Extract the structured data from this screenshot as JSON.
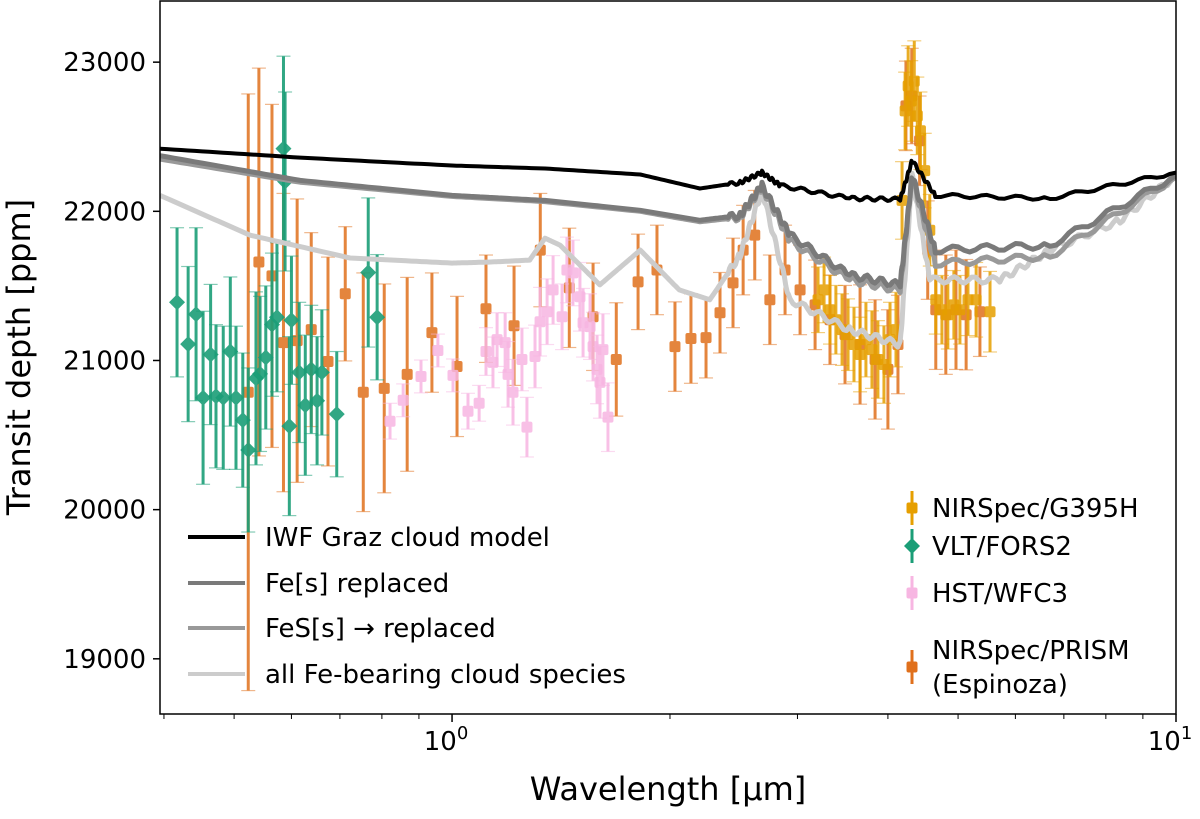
{
  "chart_data": {
    "type": "scatter",
    "xlabel": "Wavelength [μm]",
    "ylabel": "Transit depth [ppm]",
    "xscale": "log",
    "xlim": [
      0.395,
      10
    ],
    "ylim": [
      18630,
      23410
    ],
    "xticks": [
      {
        "value": 1,
        "base": "10",
        "exp": "0"
      },
      {
        "value": 10,
        "base": "10",
        "exp": "1"
      }
    ],
    "yticks": [
      19000,
      20000,
      21000,
      22000,
      23000
    ],
    "grid": false,
    "legend_left": "bottom-left",
    "legend_right": "bottom-right",
    "models": [
      {
        "name": "IWF Graz cloud model",
        "color": "#000000",
        "points": [
          [
            0.395,
            22420
          ],
          [
            0.617,
            22360
          ],
          [
            1.0,
            22307
          ],
          [
            1.344,
            22287
          ],
          [
            1.82,
            22247
          ],
          [
            2.2,
            22153
          ],
          [
            2.5,
            22193
          ],
          [
            2.68,
            22260
          ],
          [
            2.84,
            22173
          ],
          [
            3.54,
            22087
          ],
          [
            4.16,
            22080
          ],
          [
            4.32,
            22340
          ],
          [
            4.65,
            22107
          ],
          [
            6.7,
            22087
          ],
          [
            10,
            22260
          ]
        ]
      },
      {
        "name": "Fe[s] replaced",
        "color": "#7a7a7a",
        "points": [
          [
            0.395,
            22373
          ],
          [
            0.617,
            22207
          ],
          [
            1.0,
            22107
          ],
          [
            1.344,
            22073
          ],
          [
            1.82,
            22007
          ],
          [
            2.2,
            21940
          ],
          [
            2.5,
            21973
          ],
          [
            2.68,
            22173
          ],
          [
            2.93,
            21840
          ],
          [
            3.54,
            21573
          ],
          [
            4.16,
            21507
          ],
          [
            4.32,
            22240
          ],
          [
            4.65,
            21740
          ],
          [
            6.7,
            21773
          ],
          [
            10,
            22240
          ]
        ]
      },
      {
        "name": "FeS[s] → replaced",
        "color": "#999999",
        "points": [
          [
            0.395,
            22350
          ],
          [
            0.617,
            22195
          ],
          [
            1.0,
            22100
          ],
          [
            1.344,
            22065
          ],
          [
            1.82,
            22000
          ],
          [
            2.2,
            21930
          ],
          [
            2.5,
            21960
          ],
          [
            2.68,
            22160
          ],
          [
            2.93,
            21800
          ],
          [
            3.54,
            21540
          ],
          [
            4.16,
            21470
          ],
          [
            4.32,
            22230
          ],
          [
            4.65,
            21650
          ],
          [
            6.7,
            21700
          ],
          [
            10,
            22230
          ]
        ]
      },
      {
        "name": "all Fe-bearing cloud species",
        "color": "#cccccc",
        "points": [
          [
            0.395,
            22107
          ],
          [
            0.526,
            21840
          ],
          [
            0.723,
            21687
          ],
          [
            1.0,
            21653
          ],
          [
            1.13,
            21660
          ],
          [
            1.28,
            21673
          ],
          [
            1.344,
            21820
          ],
          [
            1.41,
            21773
          ],
          [
            1.6,
            21507
          ],
          [
            1.82,
            21740
          ],
          [
            2.06,
            21473
          ],
          [
            2.27,
            21407
          ],
          [
            2.5,
            21707
          ],
          [
            2.68,
            22140
          ],
          [
            2.93,
            21407
          ],
          [
            3.54,
            21207
          ],
          [
            4.16,
            21107
          ],
          [
            4.32,
            22240
          ],
          [
            4.57,
            21540
          ],
          [
            5.71,
            21540
          ],
          [
            6.7,
            21740
          ],
          [
            8.37,
            21940
          ],
          [
            10,
            22240
          ]
        ]
      }
    ],
    "series": [
      {
        "name": "NIRSpec/G395H",
        "marker": "square",
        "color": "#e69f00",
        "points": [
          [
            3.203,
            21407,
            220
          ],
          [
            3.265,
            21473,
            220
          ],
          [
            3.327,
            21340,
            230
          ],
          [
            3.39,
            21273,
            230
          ],
          [
            3.457,
            21207,
            240
          ],
          [
            3.524,
            21173,
            240
          ],
          [
            3.591,
            21107,
            250
          ],
          [
            3.661,
            21040,
            250
          ],
          [
            3.73,
            21140,
            250
          ],
          [
            3.802,
            21073,
            260
          ],
          [
            3.875,
            21007,
            260
          ],
          [
            3.95,
            20973,
            260
          ],
          [
            4.027,
            21140,
            250
          ],
          [
            4.104,
            21207,
            250
          ],
          [
            4.184,
            22073,
            260
          ],
          [
            4.225,
            22673,
            260
          ],
          [
            4.266,
            22840,
            270
          ],
          [
            4.308,
            22740,
            270
          ],
          [
            4.35,
            22873,
            270
          ],
          [
            4.392,
            22640,
            260
          ],
          [
            4.436,
            22540,
            260
          ],
          [
            4.497,
            22273,
            250
          ],
          [
            4.57,
            21873,
            240
          ],
          [
            4.658,
            21407,
            230
          ],
          [
            4.75,
            21340,
            230
          ],
          [
            4.84,
            21307,
            230
          ],
          [
            4.934,
            21373,
            230
          ],
          [
            5.03,
            21340,
            230
          ],
          [
            5.16,
            21407,
            240
          ],
          [
            5.296,
            21407,
            250
          ],
          [
            5.535,
            21327,
            270
          ]
        ]
      },
      {
        "name": "VLT/FORS2",
        "marker": "diamond",
        "color": "#1b9e77",
        "points": [
          [
            0.417,
            21390,
            500
          ],
          [
            0.432,
            21110,
            520
          ],
          [
            0.443,
            21310,
            580
          ],
          [
            0.453,
            20750,
            580
          ],
          [
            0.464,
            21040,
            470
          ],
          [
            0.472,
            20760,
            480
          ],
          [
            0.483,
            20750,
            480
          ],
          [
            0.494,
            21060,
            500
          ],
          [
            0.503,
            20750,
            480
          ],
          [
            0.514,
            20600,
            450
          ],
          [
            0.523,
            20400,
            550
          ],
          [
            0.536,
            20880,
            580
          ],
          [
            0.543,
            20910,
            520
          ],
          [
            0.553,
            21020,
            480
          ],
          [
            0.564,
            21240,
            480
          ],
          [
            0.573,
            21290,
            500
          ],
          [
            0.585,
            22420,
            620
          ],
          [
            0.588,
            22200,
            600
          ],
          [
            0.596,
            20560,
            600
          ],
          [
            0.6,
            21270,
            430
          ],
          [
            0.615,
            20920,
            470
          ],
          [
            0.627,
            20700,
            470
          ],
          [
            0.639,
            20940,
            430
          ],
          [
            0.651,
            20730,
            430
          ],
          [
            0.661,
            20920,
            420
          ],
          [
            0.693,
            20640,
            420
          ],
          [
            0.766,
            21590,
            500
          ],
          [
            0.788,
            21290,
            420
          ]
        ]
      },
      {
        "name": "HST/WFC3",
        "marker": "square",
        "color": "#f7b6e2",
        "points": [
          [
            0.821,
            20593,
            120
          ],
          [
            0.856,
            20733,
            110
          ],
          [
            0.906,
            20893,
            110
          ],
          [
            0.956,
            21067,
            110
          ],
          [
            1.003,
            20900,
            110
          ],
          [
            1.052,
            20660,
            120
          ],
          [
            1.09,
            20713,
            120
          ],
          [
            1.114,
            21060,
            160
          ],
          [
            1.139,
            20987,
            170
          ],
          [
            1.154,
            21140,
            180
          ],
          [
            1.184,
            21120,
            200
          ],
          [
            1.195,
            20907,
            220
          ],
          [
            1.214,
            20787,
            220
          ],
          [
            1.249,
            21007,
            210
          ],
          [
            1.269,
            20553,
            200
          ],
          [
            1.302,
            21027,
            210
          ],
          [
            1.323,
            21260,
            230
          ],
          [
            1.353,
            21327,
            220
          ],
          [
            1.379,
            21473,
            230
          ],
          [
            1.419,
            21293,
            220
          ],
          [
            1.441,
            21607,
            220
          ],
          [
            1.469,
            21587,
            220
          ],
          [
            1.502,
            21427,
            230
          ],
          [
            1.517,
            21253,
            230
          ],
          [
            1.551,
            21227,
            220
          ],
          [
            1.566,
            21093,
            230
          ],
          [
            1.586,
            20940,
            230
          ],
          [
            1.601,
            20853,
            240
          ],
          [
            1.616,
            21073,
            240
          ],
          [
            1.642,
            20620,
            230
          ]
        ]
      },
      {
        "name": "NIRSpec/PRISM\n (Espinoza)",
        "label_lines": [
          "NIRSpec/PRISM",
          " (Espinoza)"
        ],
        "marker": "square",
        "color": "#e0701c",
        "points": [
          [
            0.523,
            20787,
            2000
          ],
          [
            0.541,
            21660,
            1300
          ],
          [
            0.564,
            21567,
            1150
          ],
          [
            0.585,
            21120,
            1000
          ],
          [
            0.611,
            21133,
            950
          ],
          [
            0.639,
            21207,
            650
          ],
          [
            0.674,
            20993,
            700
          ],
          [
            0.712,
            21447,
            450
          ],
          [
            0.754,
            20787,
            800
          ],
          [
            0.806,
            20813,
            700
          ],
          [
            0.867,
            20907,
            650
          ],
          [
            0.938,
            21187,
            400
          ],
          [
            1.016,
            20960,
            470
          ],
          [
            1.114,
            21347,
            360
          ],
          [
            1.218,
            21233,
            400
          ],
          [
            1.324,
            21740,
            380
          ],
          [
            1.452,
            21487,
            400
          ],
          [
            1.566,
            21293,
            360
          ],
          [
            1.686,
            21007,
            380
          ],
          [
            1.807,
            21527,
            320
          ],
          [
            1.919,
            21607,
            300
          ],
          [
            2.032,
            21093,
            300
          ],
          [
            2.138,
            21147,
            300
          ],
          [
            2.243,
            21153,
            270
          ],
          [
            2.345,
            21320,
            270
          ],
          [
            2.444,
            21520,
            300
          ],
          [
            2.524,
            21740,
            300
          ],
          [
            2.619,
            21840,
            300
          ],
          [
            2.748,
            21407,
            300
          ],
          [
            2.884,
            21607,
            300
          ],
          [
            3.025,
            21473,
            300
          ],
          [
            3.173,
            21373,
            300
          ],
          [
            3.327,
            21273,
            300
          ],
          [
            3.49,
            21173,
            330
          ],
          [
            3.661,
            21107,
            400
          ],
          [
            3.84,
            21007,
            400
          ],
          [
            4.0,
            20940,
            400
          ],
          [
            4.13,
            21107,
            330
          ],
          [
            4.236,
            22707,
            300
          ],
          [
            4.315,
            22773,
            320
          ],
          [
            4.424,
            22473,
            300
          ],
          [
            4.54,
            21740,
            330
          ],
          [
            4.658,
            21340,
            400
          ],
          [
            4.809,
            21307,
            400
          ],
          [
            4.967,
            21340,
            400
          ],
          [
            5.13,
            21307,
            370
          ],
          [
            5.36,
            21327,
            300
          ]
        ]
      }
    ]
  }
}
